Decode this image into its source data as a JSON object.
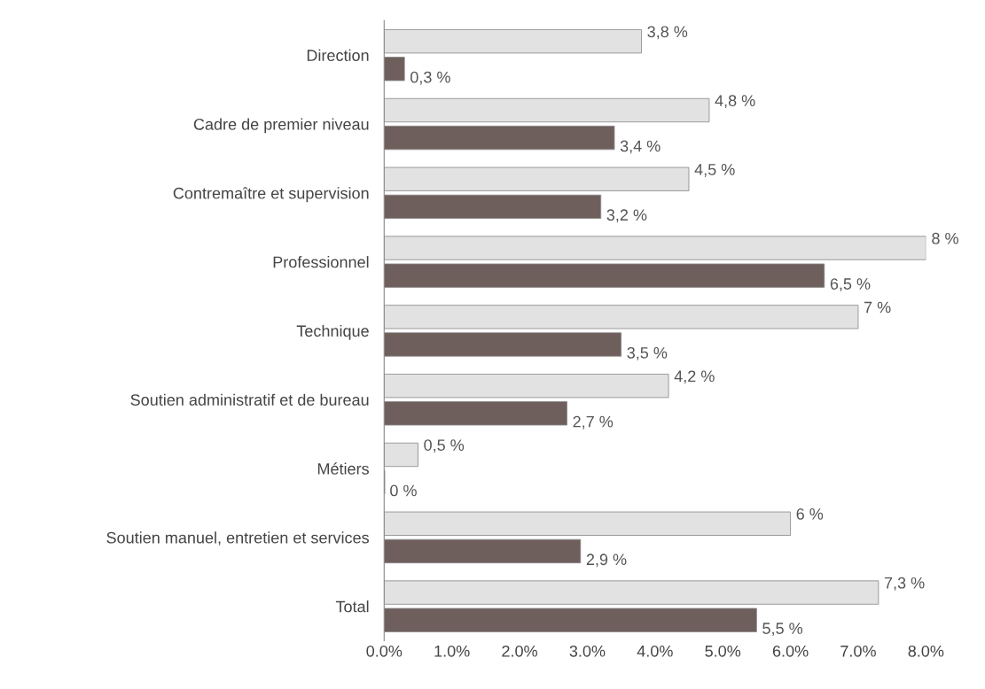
{
  "chart_data": {
    "type": "bar",
    "orientation": "horizontal",
    "categories": [
      "Direction",
      "Cadre de premier niveau",
      "Contremaître et supervision",
      "Professionnel",
      "Technique",
      "Soutien administratif et de bureau",
      "Métiers",
      "Soutien manuel, entretien et services",
      "Total"
    ],
    "series": [
      {
        "color": "#e2e2e2",
        "values": [
          3.8,
          4.8,
          4.5,
          8,
          7,
          4.2,
          0.5,
          6,
          7.3
        ],
        "value_labels": [
          "3,8 %",
          "4,8 %",
          "4,5 %",
          "8 %",
          "7 %",
          "4,2 %",
          "0,5 %",
          "6 %",
          "7,3 %"
        ]
      },
      {
        "color": "#6f5f5c",
        "values": [
          0.3,
          3.4,
          3.2,
          6.5,
          3.5,
          2.7,
          0,
          2.9,
          5.5
        ],
        "value_labels": [
          "0,3 %",
          "3,4 %",
          "3,2 %",
          "6,5 %",
          "3,5 %",
          "2,7 %",
          "0 %",
          "2,9 %",
          "5,5 %"
        ]
      }
    ],
    "xlim": [
      0,
      8
    ],
    "xticks": [
      {
        "value": 0,
        "label": "0.0%"
      },
      {
        "value": 1,
        "label": "1.0%"
      },
      {
        "value": 2,
        "label": "2.0%"
      },
      {
        "value": 3,
        "label": "3.0%"
      },
      {
        "value": 4,
        "label": "4.0%"
      },
      {
        "value": 5,
        "label": "5.0%"
      },
      {
        "value": 6,
        "label": "6.0%"
      },
      {
        "value": 7,
        "label": "7.0%"
      },
      {
        "value": 8,
        "label": "8.0%"
      }
    ],
    "grid": false,
    "legend": false
  }
}
